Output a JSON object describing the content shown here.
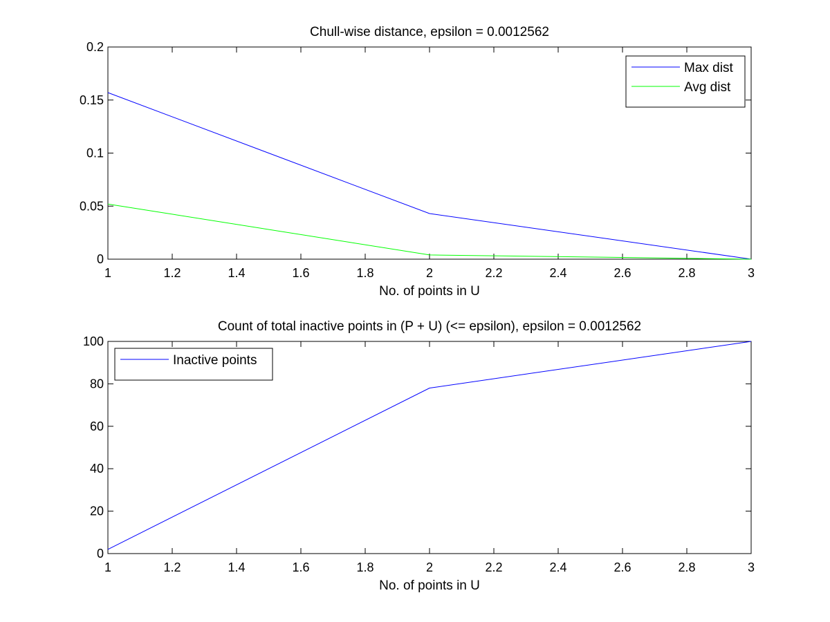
{
  "chart_data": [
    {
      "type": "line",
      "title": "Chull-wise distance, epsilon = 0.0012562",
      "xlabel": "No. of points in U",
      "ylabel": "",
      "xlim": [
        1,
        3
      ],
      "ylim": [
        0,
        0.2
      ],
      "x_ticks": [
        "1",
        "1.2",
        "1.4",
        "1.6",
        "1.8",
        "2",
        "2.2",
        "2.4",
        "2.6",
        "2.8",
        "3"
      ],
      "y_ticks": [
        "0",
        "0.05",
        "0.1",
        "0.15",
        "0.2"
      ],
      "legend_position": "top-right",
      "grid": false,
      "x": [
        1,
        2,
        3
      ],
      "series": [
        {
          "name": "Max dist",
          "color": "#0000ff",
          "values": [
            0.157,
            0.043,
            0.0
          ]
        },
        {
          "name": "Avg dist",
          "color": "#00ff00",
          "values": [
            0.052,
            0.004,
            0.0
          ]
        }
      ]
    },
    {
      "type": "line",
      "title": "Count of total inactive points in (P + U) (<= epsilon), epsilon = 0.0012562",
      "xlabel": "No. of points in U",
      "ylabel": "",
      "xlim": [
        1,
        3
      ],
      "ylim": [
        0,
        100
      ],
      "x_ticks": [
        "1",
        "1.2",
        "1.4",
        "1.6",
        "1.8",
        "2",
        "2.2",
        "2.4",
        "2.6",
        "2.8",
        "3"
      ],
      "y_ticks": [
        "0",
        "20",
        "40",
        "60",
        "80",
        "100"
      ],
      "legend_position": "top-left",
      "grid": false,
      "x": [
        1,
        2,
        3
      ],
      "series": [
        {
          "name": "Inactive points",
          "color": "#0000ff",
          "values": [
            2,
            78,
            100
          ]
        }
      ]
    }
  ]
}
